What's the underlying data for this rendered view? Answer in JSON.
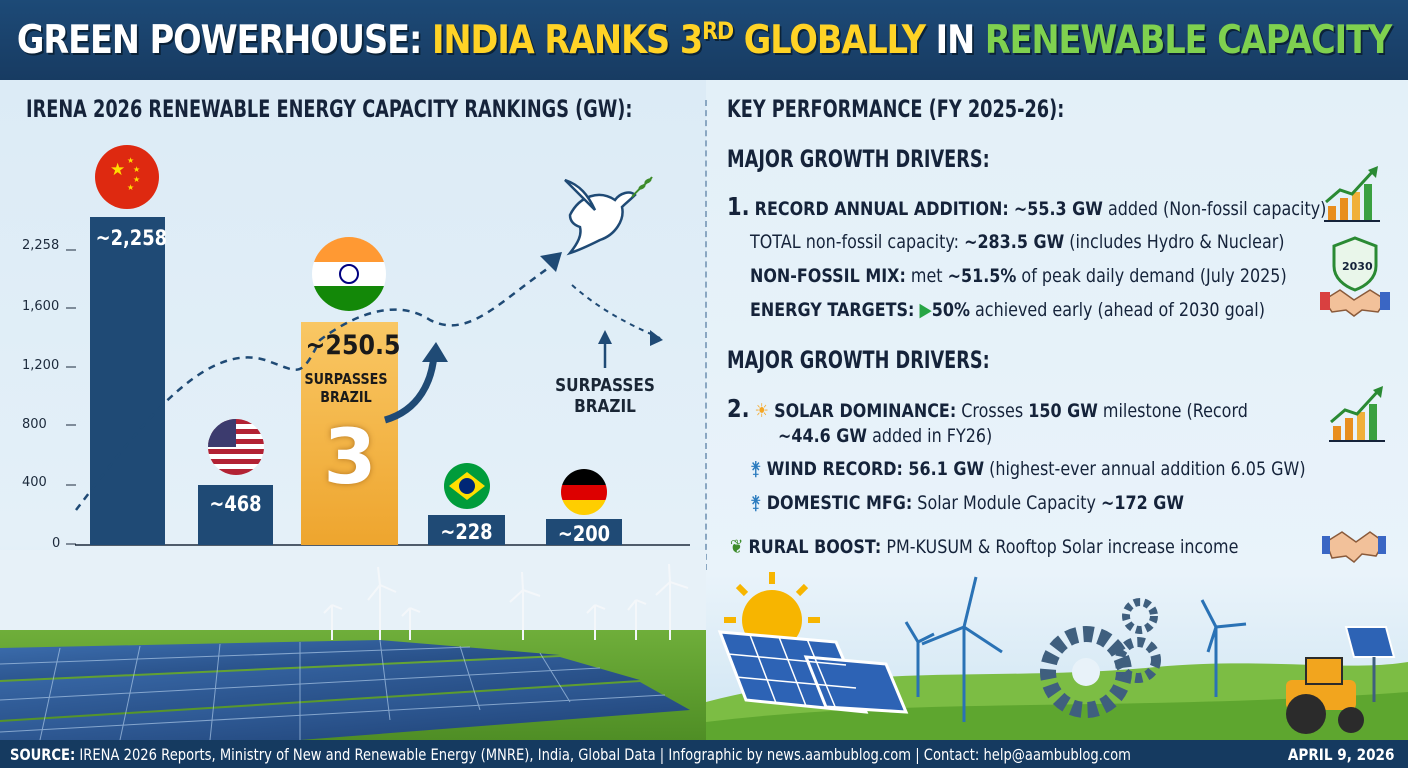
{
  "header": {
    "title_part1": "GREEN POWERHOUSE: ",
    "title_part2": "INDIA RANKS 3",
    "title_sup": "RD",
    "title_part3": " GLOBALLY ",
    "title_part4": "IN ",
    "title_part5": "RENEWABLE CAPACITY"
  },
  "left": {
    "section_title": "IRENA 2026 RENEWABLE ENERGY CAPACITY RANKINGS (GW):",
    "india_value": "~250.5",
    "india_sub": "SURPASSES BRAZIL",
    "india_rank": "3",
    "surpass_note": "SURPASSES BRAZIL"
  },
  "chart_data": {
    "type": "bar",
    "title": "IRENA 2026 RENEWABLE ENERGY CAPACITY RANKINGS (GW):",
    "categories": [
      "China",
      "USA",
      "India",
      "Brazil",
      "Germany"
    ],
    "values": [
      2258,
      468,
      250.5,
      228,
      200
    ],
    "labels": [
      "~2,258",
      "~468",
      "~250.5",
      "~228",
      "~200"
    ],
    "y_ticks": [
      "0",
      "400",
      "800",
      "1,200",
      "1,600",
      "2,258"
    ],
    "highlight": "India",
    "colors": {
      "bar": "#1f4a75",
      "highlight": "#f5b13c"
    }
  },
  "right": {
    "section_title": "KEY PERFORMANCE (FY 2025-26):",
    "drivers_title_1": "MAJOR GROWTH DRIVERS:",
    "item1_num": "1.",
    "item1_label": "RECORD ANNUAL ADDITION:",
    "item1_value": "~55.3 GW",
    "item1_rest": "added (Non-fossil capacity)",
    "total_pre": "TOTAL non-fossil capacity: ",
    "total_value": "~283.5 GW",
    "total_rest": " (includes Hydro & Nuclear)",
    "mix_label": "NON-FOSSIL MIX:",
    "mix_pre": " met ",
    "mix_value": "~51.5%",
    "mix_rest": " of peak daily demand (July 2025)",
    "target_label": "ENERGY TARGETS:",
    "target_value": "50%",
    "target_rest": " achieved early (ahead of 2030 goal)",
    "badge_text": "2030",
    "drivers_title_2": "MAJOR GROWTH DRIVERS:",
    "item2_num": "2.",
    "solar_label": "SOLAR DOMINANCE:",
    "solar_pre": " Crosses ",
    "solar_value": "150 GW",
    "solar_rest": " milestone (Record",
    "solar_line2_value": "~44.6 GW",
    "solar_line2_rest": " added in FY26)",
    "wind_label": "WIND RECORD: 56.1 GW",
    "wind_rest": " (highest-ever annual addition 6.05 GW)",
    "mfg_label": "DOMESTIC MFG:",
    "mfg_pre": " Solar Module Capacity ",
    "mfg_value": "~172 GW",
    "rural_label": "RURAL BOOST:",
    "rural_rest": " PM-KUSUM & Rooftop Solar increase income"
  },
  "footer": {
    "source_label": "SOURCE:",
    "source_text": " IRENA 2026 Reports, Ministry of New and Renewable Energy (MNRE), India, Global Data | Infographic by news.aambublog.com | Contact: help@aambublog.com",
    "date": "APRIL 9, 2026"
  }
}
